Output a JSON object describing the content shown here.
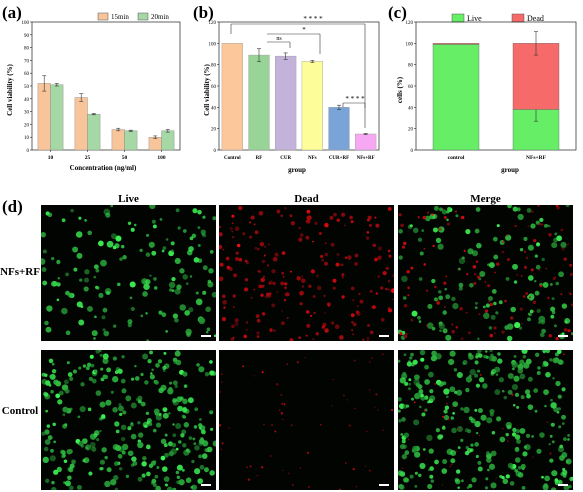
{
  "panel_labels": {
    "a": "(a)",
    "b": "(b)",
    "c": "(c)",
    "d": "(d)"
  },
  "colors": {
    "orange": "#f8c49a",
    "green": "#a6d8a6",
    "bar_b_control": "#fbc79b",
    "bar_b_rf": "#98d498",
    "bar_b_cur": "#c3b3da",
    "bar_b_nfs": "#fdfd99",
    "bar_b_curf": "#7aa4d8",
    "bar_b_nfsrf": "#f6a8f2",
    "live": "#66ee66",
    "dead": "#f66a6a"
  },
  "chart_data": [
    {
      "id": "a",
      "type": "bar",
      "categories": [
        "10",
        "25",
        "50",
        "100"
      ],
      "series": [
        {
          "name": "15min",
          "values": [
            52,
            41,
            16,
            10
          ],
          "errors": [
            6,
            3,
            1,
            1
          ]
        },
        {
          "name": "20min",
          "values": [
            51,
            28,
            15,
            15
          ],
          "errors": [
            1,
            0.5,
            0.5,
            1
          ]
        }
      ],
      "xlabel": "Concentration (ng/ml)",
      "ylabel": "Cell viability (%)",
      "ylim": [
        0,
        100
      ],
      "yticks": [
        "0",
        "10",
        "20",
        "30",
        "40",
        "50",
        "60",
        "70",
        "80",
        "90",
        "100"
      ],
      "legend": "top-right"
    },
    {
      "id": "b",
      "type": "bar",
      "categories": [
        "Control",
        "RF",
        "CUR",
        "NFs",
        "CUR+RF",
        "NFs+RF"
      ],
      "values": [
        100,
        89,
        88,
        83,
        40,
        15
      ],
      "errors": [
        0,
        6,
        3,
        1,
        2,
        0.5
      ],
      "xlabel": "group",
      "ylabel": "Cell viability (%)",
      "ylim": [
        0,
        120
      ],
      "yticks": [
        "0",
        "20",
        "40",
        "60",
        "80",
        "100",
        "120"
      ],
      "annotations": [
        "ns",
        "*",
        "* * * *",
        "* * * *"
      ]
    },
    {
      "id": "c",
      "type": "bar",
      "stacked": true,
      "categories": [
        "control",
        "NFs+RF"
      ],
      "series": [
        {
          "name": "Live",
          "values": [
            99,
            38
          ],
          "errors": [
            0,
            11
          ]
        },
        {
          "name": "Dead",
          "values": [
            1,
            62
          ],
          "errors": [
            0,
            11
          ]
        }
      ],
      "xlabel": "group",
      "ylabel": "cells (%)",
      "ylim": [
        0,
        120
      ],
      "yticks": [
        "0",
        "20",
        "40",
        "60",
        "80",
        "100",
        "120"
      ],
      "legend": "top"
    }
  ],
  "micrographs": {
    "columns": [
      "Live",
      "Dead",
      "Merge"
    ],
    "rows": [
      "NFs+RF",
      "Control"
    ]
  }
}
